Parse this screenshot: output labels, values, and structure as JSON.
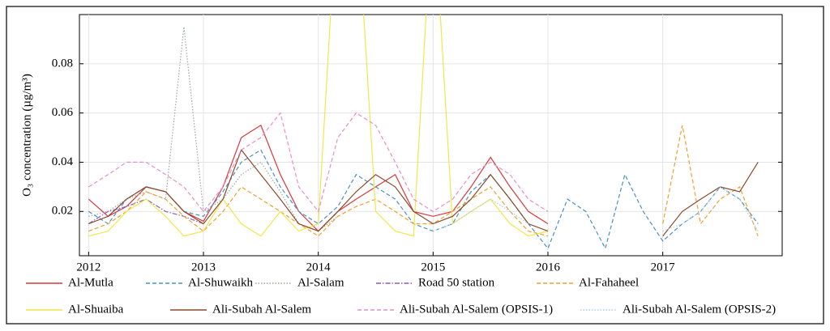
{
  "chart_data": {
    "type": "line",
    "y_label": "O₃ concentration (µg/m³)",
    "xlim": [
      2011.92,
      2018.04
    ],
    "ylim": [
      0.002,
      0.1
    ],
    "xticks": [
      2012,
      2013,
      2014,
      2015,
      2016,
      2017
    ],
    "yticks": [
      0.02,
      0.04,
      0.06,
      0.08
    ],
    "grid": true,
    "legend": "bottom",
    "x": [
      2012,
      2012.17,
      2012.33,
      2012.5,
      2012.67,
      2012.83,
      2013,
      2013.17,
      2013.33,
      2013.5,
      2013.67,
      2013.83,
      2014,
      2014.17,
      2014.33,
      2014.5,
      2014.67,
      2014.83,
      2015,
      2015.17,
      2015.33,
      2015.5,
      2015.67,
      2015.83,
      2016,
      2016.17,
      2016.33,
      2016.5,
      2016.67,
      2016.83,
      2017,
      2017.17,
      2017.33,
      2017.5,
      2017.67,
      2017.83
    ],
    "series": [
      {
        "name": "Al-Mutla",
        "color": "#d9383a",
        "linestyle": "solid",
        "values": [
          0.025,
          0.018,
          0.022,
          0.03,
          0.028,
          0.02,
          0.016,
          0.03,
          0.05,
          0.055,
          0.035,
          0.02,
          0.012,
          0.02,
          0.025,
          0.03,
          0.035,
          0.02,
          0.018,
          0.02,
          0.03,
          0.042,
          0.03,
          0.02,
          0.015,
          null,
          null,
          null,
          null,
          null,
          null,
          null,
          null,
          null,
          null,
          null
        ]
      },
      {
        "name": "Al-Shuwaikh",
        "color": "#4a90c8",
        "linestyle": "dashed",
        "values": [
          0.02,
          0.015,
          0.025,
          0.03,
          0.028,
          0.02,
          0.018,
          0.028,
          0.04,
          0.045,
          0.03,
          0.02,
          0.015,
          0.022,
          0.035,
          0.03,
          0.025,
          0.015,
          0.012,
          0.015,
          0.028,
          0.035,
          0.025,
          0.015,
          0.005,
          0.025,
          0.02,
          0.005,
          0.035,
          0.02,
          0.008,
          0.015,
          0.02,
          0.03,
          0.025,
          0.015
        ]
      },
      {
        "name": "Al-Salam",
        "color": "#9aaa9a",
        "linestyle": "dotted",
        "values": [
          0.018,
          0.02,
          0.025,
          0.028,
          0.025,
          0.095,
          0.02,
          0.025,
          0.035,
          0.04,
          0.028,
          0.015,
          0.012,
          0.018,
          null,
          null,
          null,
          null,
          null,
          null,
          null,
          null,
          null,
          null,
          null,
          null,
          null,
          null,
          null,
          null,
          null,
          null,
          null,
          null,
          null,
          null
        ]
      },
      {
        "name": "Road 50 station",
        "color": "#8a5fbf",
        "linestyle": "dashdot",
        "values": [
          0.015,
          0.02,
          0.022,
          0.025,
          0.02,
          0.018,
          0.015,
          null,
          null,
          null,
          null,
          null,
          null,
          null,
          null,
          null,
          null,
          null,
          null,
          null,
          null,
          null,
          null,
          null,
          null,
          null,
          null,
          null,
          null,
          null,
          null,
          null,
          null,
          null,
          null,
          null
        ]
      },
      {
        "name": "Al-Fahaheel",
        "color": "#f0a030",
        "linestyle": "dashed",
        "values": [
          0.012,
          0.015,
          0.02,
          0.028,
          0.025,
          0.018,
          0.012,
          0.02,
          0.03,
          0.025,
          0.02,
          0.015,
          0.01,
          0.018,
          0.022,
          0.025,
          0.02,
          0.015,
          0.015,
          0.02,
          0.025,
          0.03,
          0.02,
          0.012,
          0.01,
          null,
          null,
          null,
          null,
          null,
          0.015,
          0.055,
          0.015,
          0.025,
          0.03,
          0.01
        ]
      },
      {
        "name": "Al-Shuaiba",
        "color": "#f2e64a",
        "linestyle": "solid",
        "values": [
          0.01,
          0.012,
          0.02,
          0.025,
          0.018,
          0.01,
          0.012,
          0.025,
          0.015,
          0.01,
          0.02,
          0.012,
          0.015,
          0.15,
          0.15,
          0.02,
          0.012,
          0.01,
          0.15,
          0.015,
          0.02,
          0.025,
          0.015,
          0.01,
          0.012,
          null,
          null,
          null,
          null,
          null,
          null,
          null,
          null,
          null,
          null,
          null
        ]
      },
      {
        "name": "Ali-Subah Al-Salem",
        "color": "#8b4a2b",
        "linestyle": "solid",
        "values": [
          0.015,
          0.018,
          0.025,
          0.03,
          0.028,
          0.02,
          0.015,
          0.025,
          0.045,
          0.035,
          0.025,
          0.015,
          0.012,
          0.02,
          0.028,
          0.035,
          0.03,
          0.02,
          0.015,
          0.018,
          0.025,
          0.035,
          0.025,
          0.015,
          0.012,
          null,
          null,
          null,
          null,
          null,
          0.01,
          0.02,
          0.025,
          0.03,
          0.028,
          0.04
        ]
      },
      {
        "name": "Ali-Subah Al-Salem (OPSIS-1)",
        "color": "#e88fc8",
        "linestyle": "dashed",
        "values": [
          0.03,
          0.035,
          0.04,
          0.04,
          0.035,
          0.03,
          0.02,
          0.03,
          0.045,
          0.05,
          0.06,
          0.03,
          0.02,
          0.05,
          0.06,
          0.055,
          0.04,
          0.025,
          0.02,
          0.025,
          0.035,
          0.04,
          0.035,
          0.025,
          0.02,
          null,
          null,
          null,
          null,
          null,
          null,
          null,
          null,
          null,
          null,
          null
        ]
      },
      {
        "name": "Ali-Subah Al-Salem (OPSIS-2)",
        "color": "#a8d0e0",
        "linestyle": "dotted",
        "values": [
          null,
          null,
          null,
          null,
          null,
          null,
          null,
          null,
          null,
          null,
          null,
          null,
          null,
          null,
          null,
          null,
          null,
          null,
          0.012,
          0.015,
          0.02,
          0.025,
          0.02,
          0.015,
          null,
          null,
          null,
          null,
          null,
          null,
          0.012,
          0.015,
          0.02,
          0.03,
          0.025,
          0.012
        ]
      }
    ]
  }
}
